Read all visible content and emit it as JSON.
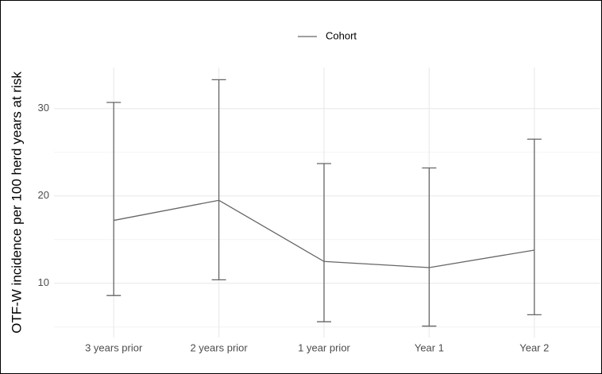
{
  "chart_data": {
    "type": "line",
    "ylabel": "OTF-W incidence per 100 herd years at risk",
    "categories": [
      "3 years prior",
      "2 years prior",
      "1 year prior",
      "Year 1",
      "Year 2"
    ],
    "series": [
      {
        "name": "Cohort",
        "color": "#666666",
        "values": [
          17.2,
          19.5,
          12.5,
          11.8,
          13.8
        ],
        "lower": [
          8.6,
          10.4,
          5.6,
          5.1,
          6.4
        ],
        "upper": [
          30.7,
          33.3,
          23.7,
          23.2,
          26.5
        ]
      }
    ],
    "ylim": [
      3.8,
      34.7
    ],
    "yticks": [
      10,
      20,
      30
    ],
    "grid": true,
    "legend": "top"
  }
}
